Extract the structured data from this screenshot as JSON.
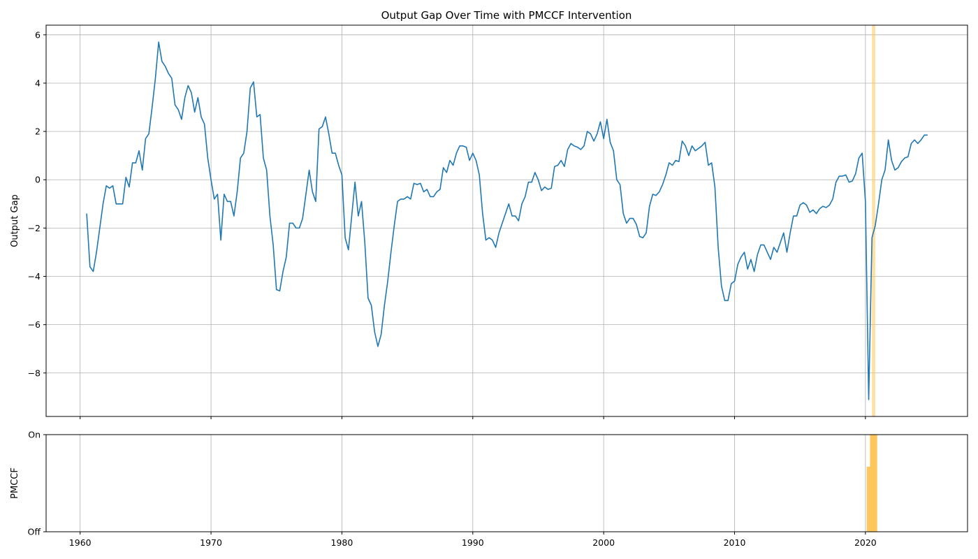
{
  "chart_data": [
    {
      "type": "line",
      "title": "Output Gap Over Time with PMCCF Intervention",
      "xlabel": "",
      "ylabel": "Output Gap",
      "xlim": [
        1957.4,
        2027.8
      ],
      "ylim": [
        -9.8,
        6.4
      ],
      "grid": true,
      "x_ticks": [
        1960,
        1970,
        1980,
        1990,
        2000,
        2010,
        2020
      ],
      "x_tick_labels": [
        "1960",
        "1970",
        "1980",
        "1990",
        "2000",
        "2010",
        "2020"
      ],
      "y_ticks": [
        6,
        4,
        2,
        0,
        -2,
        -4,
        -6,
        -8
      ],
      "y_tick_labels": [
        "6",
        "4",
        "2",
        "0",
        "−2",
        "−4",
        "−6",
        "−8"
      ],
      "shaded_region": {
        "x_start": 2020.5,
        "x_end": 2020.75,
        "color": "#ffcc66"
      },
      "series": [
        {
          "color": "#1f77b4",
          "x": [
            1960.5,
            1960.75,
            1961.0,
            1961.25,
            1961.5,
            1961.75,
            1962.0,
            1962.25,
            1962.5,
            1962.75,
            1963.0,
            1963.25,
            1963.5,
            1963.75,
            1964.0,
            1964.25,
            1964.5,
            1964.75,
            1965.0,
            1965.25,
            1965.5,
            1965.75,
            1966.0,
            1966.25,
            1966.5,
            1966.75,
            1967.0,
            1967.25,
            1967.5,
            1967.75,
            1968.0,
            1968.25,
            1968.5,
            1968.75,
            1969.0,
            1969.25,
            1969.5,
            1969.75,
            1970.0,
            1970.25,
            1970.5,
            1970.75,
            1971.0,
            1971.25,
            1971.5,
            1971.75,
            1972.0,
            1972.25,
            1972.5,
            1972.75,
            1973.0,
            1973.25,
            1973.5,
            1973.75,
            1974.0,
            1974.25,
            1974.5,
            1974.75,
            1975.0,
            1975.25,
            1975.5,
            1975.75,
            1976.0,
            1976.25,
            1976.5,
            1976.75,
            1977.0,
            1977.25,
            1977.5,
            1977.75,
            1978.0,
            1978.25,
            1978.5,
            1978.75,
            1979.0,
            1979.25,
            1979.5,
            1979.75,
            1980.0,
            1980.25,
            1980.5,
            1980.75,
            1981.0,
            1981.25,
            1981.5,
            1981.75,
            1982.0,
            1982.25,
            1982.5,
            1982.75,
            1983.0,
            1983.25,
            1983.5,
            1983.75,
            1984.0,
            1984.25,
            1984.5,
            1984.75,
            1985.0,
            1985.25,
            1985.5,
            1985.75,
            1986.0,
            1986.25,
            1986.5,
            1986.75,
            1987.0,
            1987.25,
            1987.5,
            1987.75,
            1988.0,
            1988.25,
            1988.5,
            1988.75,
            1989.0,
            1989.25,
            1989.5,
            1989.75,
            1990.0,
            1990.25,
            1990.5,
            1990.75,
            1991.0,
            1991.25,
            1991.5,
            1991.75,
            1992.0,
            1992.25,
            1992.5,
            1992.75,
            1993.0,
            1993.25,
            1993.5,
            1993.75,
            1994.0,
            1994.25,
            1994.5,
            1994.75,
            1995.0,
            1995.25,
            1995.5,
            1995.75,
            1996.0,
            1996.25,
            1996.5,
            1996.75,
            1997.0,
            1997.25,
            1997.5,
            1997.75,
            1998.0,
            1998.25,
            1998.5,
            1998.75,
            1999.0,
            1999.25,
            1999.5,
            1999.75,
            2000.0,
            2000.25,
            2000.5,
            2000.75,
            2001.0,
            2001.25,
            2001.5,
            2001.75,
            2002.0,
            2002.25,
            2002.5,
            2002.75,
            2003.0,
            2003.25,
            2003.5,
            2003.75,
            2004.0,
            2004.25,
            2004.5,
            2004.75,
            2005.0,
            2005.25,
            2005.5,
            2005.75,
            2006.0,
            2006.25,
            2006.5,
            2006.75,
            2007.0,
            2007.25,
            2007.5,
            2007.75,
            2008.0,
            2008.25,
            2008.5,
            2008.75,
            2009.0,
            2009.25,
            2009.5,
            2009.75,
            2010.0,
            2010.25,
            2010.5,
            2010.75,
            2011.0,
            2011.25,
            2011.5,
            2011.75,
            2012.0,
            2012.25,
            2012.5,
            2012.75,
            2013.0,
            2013.25,
            2013.5,
            2013.75,
            2014.0,
            2014.25,
            2014.5,
            2014.75,
            2015.0,
            2015.25,
            2015.5,
            2015.75,
            2016.0,
            2016.25,
            2016.5,
            2016.75,
            2017.0,
            2017.25,
            2017.5,
            2017.75,
            2018.0,
            2018.25,
            2018.5,
            2018.75,
            2019.0,
            2019.25,
            2019.5,
            2019.75,
            2020.0,
            2020.25,
            2020.5,
            2020.75,
            2021.0,
            2021.25,
            2021.5,
            2021.75,
            2022.0,
            2022.25,
            2022.5,
            2022.75,
            2023.0,
            2023.25,
            2023.5,
            2023.75,
            2024.0,
            2024.25,
            2024.5,
            2024.75
          ],
          "y": [
            -1.4,
            -3.6,
            -3.8,
            -3.0,
            -2.0,
            -1.0,
            -0.25,
            -0.35,
            -0.25,
            -1.0,
            -1.0,
            -1.0,
            0.1,
            -0.3,
            0.7,
            0.7,
            1.2,
            0.4,
            1.7,
            1.9,
            3.0,
            4.2,
            5.7,
            4.9,
            4.7,
            4.4,
            4.2,
            3.1,
            2.9,
            2.5,
            3.4,
            3.9,
            3.6,
            2.8,
            3.4,
            2.6,
            2.3,
            0.9,
            0.0,
            -0.8,
            -0.6,
            -2.5,
            -0.6,
            -0.9,
            -0.9,
            -1.5,
            -0.5,
            0.9,
            1.1,
            2.0,
            3.8,
            4.05,
            2.6,
            2.7,
            0.9,
            0.4,
            -1.5,
            -2.7,
            -4.55,
            -4.6,
            -3.8,
            -3.2,
            -1.8,
            -1.8,
            -2.0,
            -2.0,
            -1.6,
            -0.6,
            0.4,
            -0.5,
            -0.9,
            2.1,
            2.2,
            2.6,
            1.9,
            1.1,
            1.1,
            0.6,
            0.2,
            -2.4,
            -2.9,
            -1.5,
            -0.1,
            -1.5,
            -0.9,
            -2.6,
            -4.9,
            -5.2,
            -6.3,
            -6.9,
            -6.4,
            -5.2,
            -4.2,
            -3.0,
            -1.9,
            -0.9,
            -0.8,
            -0.8,
            -0.7,
            -0.8,
            -0.15,
            -0.2,
            -0.15,
            -0.5,
            -0.4,
            -0.7,
            -0.7,
            -0.5,
            -0.4,
            0.5,
            0.3,
            0.8,
            0.6,
            1.1,
            1.4,
            1.4,
            1.35,
            0.8,
            1.1,
            0.8,
            0.2,
            -1.4,
            -2.5,
            -2.4,
            -2.5,
            -2.8,
            -2.2,
            -1.8,
            -1.4,
            -1.0,
            -1.5,
            -1.5,
            -1.7,
            -1.0,
            -0.7,
            -0.1,
            -0.1,
            0.3,
            0.0,
            -0.45,
            -0.3,
            -0.4,
            -0.35,
            0.55,
            0.6,
            0.8,
            0.55,
            1.25,
            1.5,
            1.4,
            1.35,
            1.25,
            1.4,
            2.0,
            1.9,
            1.6,
            1.9,
            2.4,
            1.7,
            2.5,
            1.55,
            1.2,
            0.0,
            -0.2,
            -1.4,
            -1.8,
            -1.6,
            -1.6,
            -1.85,
            -2.35,
            -2.4,
            -2.2,
            -1.1,
            -0.6,
            -0.65,
            -0.5,
            -0.2,
            0.2,
            0.7,
            0.6,
            0.8,
            0.75,
            1.6,
            1.4,
            1.0,
            1.4,
            1.2,
            1.3,
            1.4,
            1.55,
            0.6,
            0.7,
            -0.3,
            -2.8,
            -4.4,
            -5.0,
            -5.0,
            -4.3,
            -4.2,
            -3.5,
            -3.2,
            -3.0,
            -3.7,
            -3.3,
            -3.8,
            -3.1,
            -2.7,
            -2.7,
            -3.0,
            -3.3,
            -2.8,
            -3.0,
            -2.6,
            -2.2,
            -3.0,
            -2.2,
            -1.5,
            -1.5,
            -1.05,
            -0.95,
            -1.05,
            -1.35,
            -1.25,
            -1.4,
            -1.2,
            -1.1,
            -1.15,
            -1.05,
            -0.8,
            -0.1,
            0.15,
            0.15,
            0.2,
            -0.1,
            -0.05,
            0.25,
            0.9,
            1.1,
            -0.9,
            -9.1,
            -2.4,
            -1.9,
            -1.0,
            0.0,
            0.4,
            1.65,
            0.8,
            0.4,
            0.5,
            0.75,
            0.9,
            0.95,
            1.5,
            1.65,
            1.5,
            1.65,
            1.85,
            1.85
          ]
        }
      ]
    },
    {
      "type": "bar",
      "title": "",
      "xlabel": "",
      "ylabel": "PMCCF",
      "xlim": [
        1957.4,
        2027.8
      ],
      "ylim": [
        0,
        1
      ],
      "grid": true,
      "x_ticks": [
        1960,
        1970,
        1980,
        1990,
        2000,
        2010,
        2020
      ],
      "x_tick_labels": [
        "1960",
        "1970",
        "1980",
        "1990",
        "2000",
        "2010",
        "2020"
      ],
      "y_ticks": [
        1,
        0
      ],
      "y_tick_labels": [
        "On",
        "Off"
      ],
      "bars": [
        {
          "x_start": 2020.1,
          "x_end": 2020.35,
          "value": 0.67,
          "color": "#ffb833"
        },
        {
          "x_start": 2020.35,
          "x_end": 2020.9,
          "value": 1.0,
          "color": "#ffb833"
        }
      ]
    }
  ]
}
